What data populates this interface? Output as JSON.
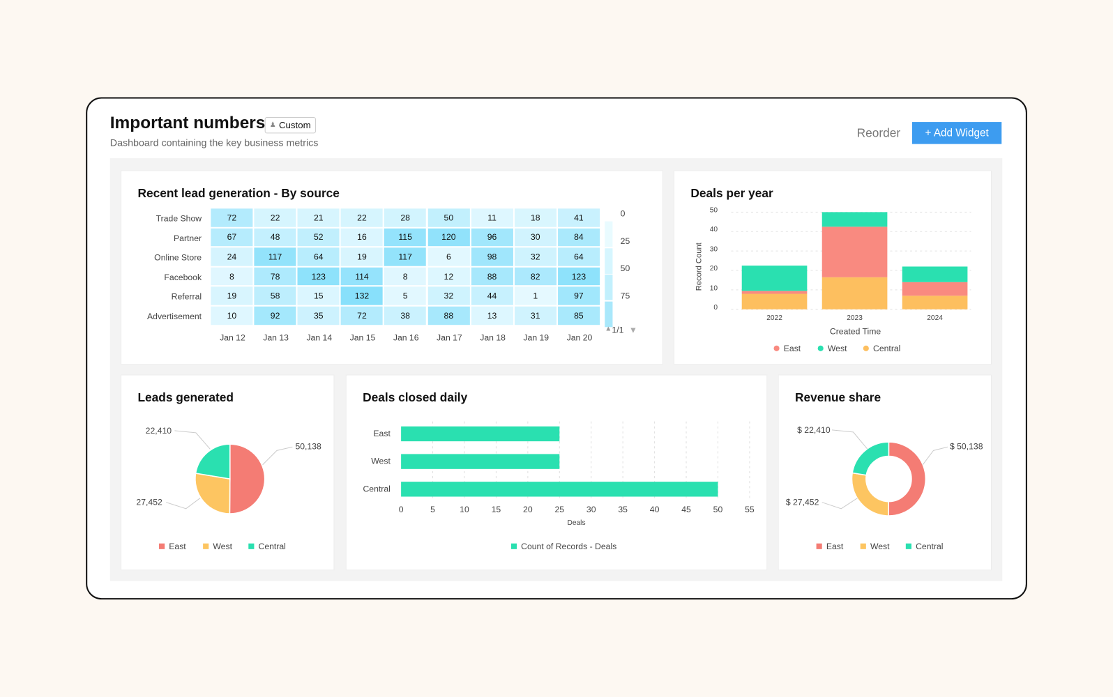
{
  "header": {
    "title": "Important numbers",
    "badge": "Custom",
    "badge_icon": "user-icon",
    "subtitle": "Dashboard containing the key business metrics",
    "reorder": "Reorder",
    "add_widget": "+ Add Widget"
  },
  "colors": {
    "east": "#f98a80",
    "west": "#2ae0b0",
    "central": "#fdbf5f",
    "accent": "#3d9cf0"
  },
  "heatmap": {
    "title": "Recent lead generation - By source",
    "rows": [
      "Trade Show",
      "Partner",
      "Online Store",
      "Facebook",
      "Referral",
      "Advertisement"
    ],
    "cols": [
      "Jan 12",
      "Jan 13",
      "Jan 14",
      "Jan 15",
      "Jan 16",
      "Jan 17",
      "Jan 18",
      "Jan 19",
      "Jan 20"
    ],
    "values": [
      [
        72,
        22,
        21,
        22,
        28,
        50,
        11,
        18,
        41
      ],
      [
        67,
        48,
        52,
        16,
        115,
        120,
        96,
        30,
        84
      ],
      [
        24,
        117,
        64,
        19,
        117,
        6,
        98,
        32,
        64
      ],
      [
        8,
        78,
        123,
        114,
        8,
        12,
        88,
        82,
        123
      ],
      [
        19,
        58,
        15,
        132,
        5,
        32,
        44,
        1,
        97
      ],
      [
        10,
        92,
        35,
        72,
        38,
        88,
        13,
        31,
        85
      ]
    ],
    "legend_ticks": [
      "0",
      "25",
      "50",
      "75"
    ],
    "pager": "1/1"
  },
  "chart_data": [
    {
      "type": "bar",
      "stacked": true,
      "title": "Deals per year",
      "categories": [
        "2022",
        "2023",
        "2024"
      ],
      "xlabel": "Created Time",
      "ylabel": "Record Count",
      "ylim": [
        0,
        50
      ],
      "yticks": [
        "0",
        "10",
        "20",
        "30",
        "40",
        "50"
      ],
      "grid": true,
      "legend": "bottom",
      "series": [
        {
          "name": "Central",
          "values": [
            8,
            16.5,
            7
          ]
        },
        {
          "name": "East",
          "values": [
            1.5,
            26,
            7
          ]
        },
        {
          "name": "West",
          "values": [
            13,
            7.5,
            8
          ]
        }
      ]
    },
    {
      "type": "pie",
      "title": "Leads generated",
      "labels": [
        "East",
        "West",
        "Central"
      ],
      "values": [
        50138,
        27452,
        22410
      ],
      "value_labels": [
        "50,138",
        "27,452",
        "22,410"
      ],
      "legend": "bottom"
    },
    {
      "type": "bar",
      "orientation": "horizontal",
      "title": "Deals closed daily",
      "categories": [
        "East",
        "West",
        "Central"
      ],
      "values": [
        25,
        25,
        50
      ],
      "xlabel": "Deals",
      "xlim": [
        0,
        55
      ],
      "xticks": [
        "0",
        "5",
        "10",
        "15",
        "20",
        "25",
        "30",
        "35",
        "40",
        "45",
        "50",
        "55"
      ],
      "series_name": "Count of Records - Deals",
      "legend": "bottom"
    },
    {
      "type": "pie",
      "donut": true,
      "title": "Revenue share",
      "labels": [
        "East",
        "West",
        "Central"
      ],
      "values": [
        50138,
        27452,
        22410
      ],
      "value_labels": [
        "$ 50,138",
        "$ 27,452",
        "$ 22,410"
      ],
      "legend": "bottom"
    }
  ]
}
